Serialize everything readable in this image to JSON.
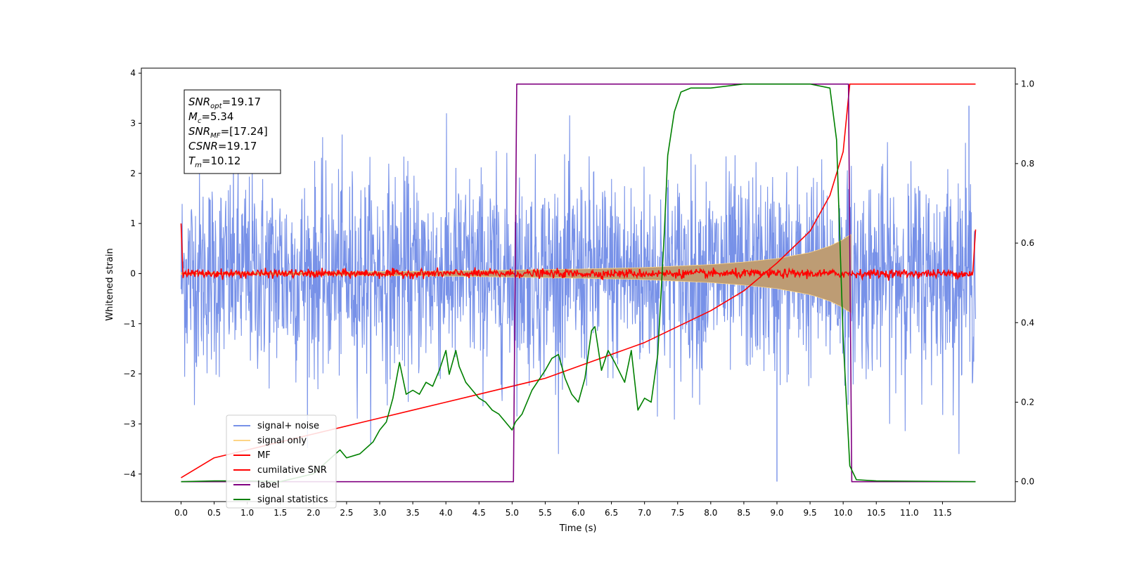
{
  "chart_data": {
    "type": "line",
    "xlabel": "Time (s)",
    "ylabel": "Whitened strain",
    "xlim": [
      -0.6,
      12.6
    ],
    "ylim": [
      -4.55,
      4.1
    ],
    "y2lim": [
      -0.05,
      1.04
    ],
    "xticks": [
      "0.0",
      "0.5",
      "1.0",
      "1.5",
      "2.0",
      "2.5",
      "3.0",
      "3.5",
      "4.0",
      "4.5",
      "5.0",
      "5.5",
      "6.0",
      "6.5",
      "7.0",
      "7.5",
      "8.0",
      "8.5",
      "9.0",
      "9.5",
      "10.0",
      "10.5",
      "11.0",
      "11.5"
    ],
    "yticks": [
      "4",
      "3",
      "2",
      "1",
      "0",
      "−1",
      "−2",
      "−3",
      "−4"
    ],
    "y2ticks": [
      "1.0",
      "0.8",
      "0.6",
      "0.4",
      "0.2",
      "0.0"
    ],
    "legend": {
      "position": "lower-left",
      "entries": [
        {
          "label": "signal+ noise",
          "color": "#7791e8"
        },
        {
          "label": "signal only",
          "color": "#fdd586"
        },
        {
          "label": "MF",
          "color": "#ff0000"
        },
        {
          "label": "cumilative SNR",
          "color": "#ff0000"
        },
        {
          "label": "label",
          "color": "#800080"
        },
        {
          "label": "signal statistics",
          "color": "#008000"
        }
      ]
    },
    "annotation": {
      "lines": [
        {
          "base": "SNR",
          "sub": "opt",
          "value": "=19.17"
        },
        {
          "base": "M",
          "sub": "c",
          "value": "=5.34"
        },
        {
          "base": "SNR",
          "sub": "MF",
          "value": "=[17.24]"
        },
        {
          "base": "CSNR",
          "sub": "",
          "value": "=19.17"
        },
        {
          "base": "T",
          "sub": "m",
          "value": "=10.12"
        }
      ]
    },
    "series": [
      {
        "name": "signal+ noise",
        "color": "#7791e8",
        "axis": "left",
        "x_range": [
          0.0,
          12.0
        ],
        "typical_amplitude": 1.0,
        "extreme_values": {
          "max": 3.35,
          "min": -4.15
        }
      },
      {
        "name": "signal only",
        "color": "#fdd586",
        "axis": "left",
        "envelope": {
          "x": [
            0.0,
            2.0,
            4.0,
            5.0,
            6.0,
            7.0,
            8.0,
            8.5,
            9.0,
            9.5,
            9.8,
            10.0,
            10.1
          ],
          "amp": [
            0.02,
            0.03,
            0.05,
            0.07,
            0.09,
            0.12,
            0.18,
            0.23,
            0.3,
            0.42,
            0.55,
            0.68,
            0.78
          ]
        },
        "ends_at": 10.12
      },
      {
        "name": "MF",
        "color": "#ff0000",
        "axis": "left",
        "baseline": 0.0,
        "noise_amplitude": 0.07,
        "edge_values": {
          "start": 1.0,
          "end": 0.88
        }
      },
      {
        "name": "cumilative SNR",
        "color": "#ff0000",
        "axis": "right",
        "x": [
          0.0,
          0.5,
          1.0,
          1.5,
          2.0,
          2.5,
          3.0,
          3.5,
          4.0,
          4.5,
          5.0,
          5.5,
          6.0,
          6.5,
          7.0,
          7.5,
          8.0,
          8.5,
          9.0,
          9.5,
          9.8,
          10.0,
          10.1,
          12.0
        ],
        "y": [
          0.01,
          0.06,
          0.08,
          0.1,
          0.12,
          0.14,
          0.16,
          0.18,
          0.2,
          0.22,
          0.24,
          0.26,
          0.29,
          0.32,
          0.35,
          0.39,
          0.43,
          0.48,
          0.55,
          0.63,
          0.72,
          0.83,
          1.0,
          1.0
        ]
      },
      {
        "name": "label",
        "color": "#800080",
        "axis": "right",
        "x": [
          0.0,
          5.02,
          5.07,
          10.08,
          10.13,
          12.0
        ],
        "y": [
          0.0,
          0.0,
          1.0,
          1.0,
          0.0,
          0.0
        ]
      },
      {
        "name": "signal statistics",
        "color": "#008000",
        "axis": "right",
        "x": [
          0.0,
          0.5,
          1.0,
          1.5,
          2.0,
          2.2,
          2.4,
          2.5,
          2.7,
          2.9,
          3.0,
          3.1,
          3.2,
          3.3,
          3.4,
          3.5,
          3.6,
          3.7,
          3.8,
          3.9,
          4.0,
          4.05,
          4.15,
          4.2,
          4.3,
          4.4,
          4.5,
          4.6,
          4.7,
          4.8,
          4.9,
          5.0,
          5.05,
          5.15,
          5.3,
          5.5,
          5.6,
          5.7,
          5.8,
          5.9,
          6.0,
          6.1,
          6.2,
          6.25,
          6.35,
          6.45,
          6.55,
          6.7,
          6.8,
          6.9,
          7.0,
          7.1,
          7.2,
          7.3,
          7.35,
          7.45,
          7.55,
          7.7,
          8.0,
          8.5,
          9.0,
          9.5,
          9.8,
          9.9,
          10.0,
          10.1,
          10.2,
          10.5,
          12.0
        ],
        "y": [
          0.0,
          0.002,
          0.002,
          0.0,
          0.02,
          0.05,
          0.08,
          0.06,
          0.07,
          0.1,
          0.13,
          0.15,
          0.21,
          0.3,
          0.22,
          0.23,
          0.22,
          0.25,
          0.24,
          0.28,
          0.33,
          0.27,
          0.33,
          0.29,
          0.25,
          0.23,
          0.21,
          0.2,
          0.18,
          0.17,
          0.15,
          0.13,
          0.15,
          0.17,
          0.23,
          0.28,
          0.31,
          0.32,
          0.26,
          0.22,
          0.2,
          0.26,
          0.38,
          0.39,
          0.28,
          0.33,
          0.3,
          0.25,
          0.33,
          0.18,
          0.21,
          0.2,
          0.32,
          0.63,
          0.82,
          0.93,
          0.98,
          0.99,
          0.99,
          1.0,
          1.0,
          1.0,
          0.99,
          0.86,
          0.36,
          0.04,
          0.005,
          0.002,
          0.0
        ]
      }
    ]
  }
}
